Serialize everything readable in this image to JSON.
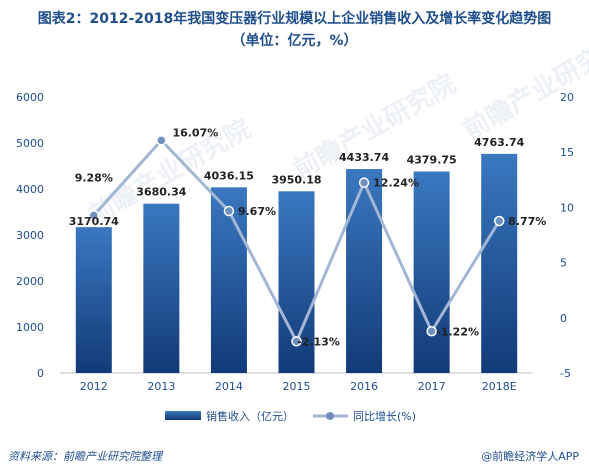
{
  "title_line1": "图表2：2012-2018年我国变压器行业规模以上企业销售收入及增长率变化趋势图",
  "title_line2": "（单位：亿元，%）",
  "chart_data": {
    "type": "bar",
    "categories": [
      "2012",
      "2013",
      "2014",
      "2015",
      "2016",
      "2017",
      "2018E"
    ],
    "series": [
      {
        "name": "销售收入（亿元）",
        "type": "bar",
        "axis": "left",
        "values": [
          3170.74,
          3680.34,
          4036.15,
          3950.18,
          4433.74,
          4379.75,
          4763.74
        ],
        "labels": [
          "3170.74",
          "3680.34",
          "4036.15",
          "3950.18",
          "4433.74",
          "4379.75",
          "4763.74"
        ]
      },
      {
        "name": "同比增长(%)",
        "type": "line",
        "axis": "right",
        "values": [
          9.28,
          16.07,
          9.67,
          -2.13,
          12.24,
          -1.22,
          8.77
        ],
        "labels": [
          "9.28%",
          "16.07%",
          "9.67%",
          "-2.13%",
          "12.24%",
          "-1.22%",
          "8.77%"
        ]
      }
    ],
    "y_left": {
      "min": 0,
      "max": 6000,
      "ticks": [
        "0",
        "1000",
        "2000",
        "3000",
        "4000",
        "5000",
        "6000"
      ]
    },
    "y_right": {
      "min": -5,
      "max": 20,
      "ticks": [
        "-5",
        "0",
        "5",
        "10",
        "15",
        "20"
      ]
    },
    "grid": false,
    "legend_position": "bottom",
    "colors": {
      "bar_top": "#3a78c0",
      "bar_bottom": "#123a78",
      "line": "#a3b6d6",
      "marker": "#6f8fbf"
    }
  },
  "footer": {
    "source": "资料来源：前瞻产业研究院整理",
    "brand": "@前瞻经济学人APP"
  },
  "watermark": "前瞻产业研究院"
}
